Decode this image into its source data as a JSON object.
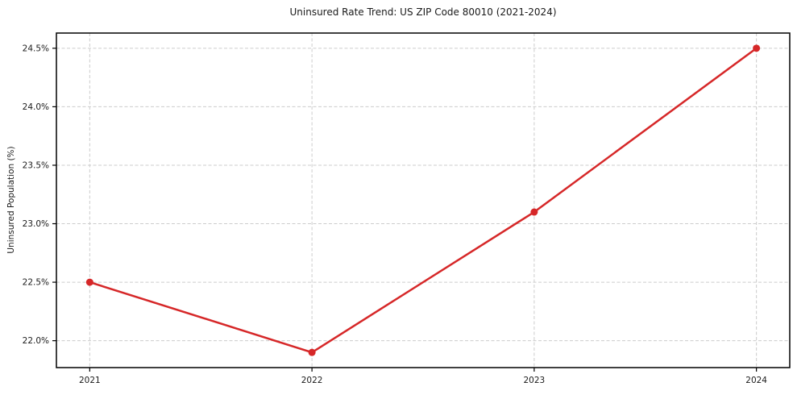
{
  "figure": {
    "background": "#ffffff"
  },
  "chart_data": {
    "type": "line",
    "title": "Uninsured Rate Trend: US ZIP Code 80010 (2021-2024)",
    "xlabel": "",
    "ylabel": "Uninsured Population (%)",
    "x": [
      2021,
      2022,
      2023,
      2024
    ],
    "x_tick_labels": [
      "2021",
      "2022",
      "2023",
      "2024"
    ],
    "y_ticks": [
      22.0,
      22.5,
      23.0,
      23.5,
      24.0,
      24.5
    ],
    "y_tick_labels": [
      "22.0%",
      "22.5%",
      "23.0%",
      "23.5%",
      "24.0%",
      "24.5%"
    ],
    "series": [
      {
        "values": [
          22.5,
          21.9,
          23.1,
          24.5
        ],
        "color": "#d62728",
        "marker": "circle"
      }
    ],
    "xlim": [
      2020.85,
      2024.15
    ],
    "ylim": [
      21.77,
      24.63
    ],
    "grid": true,
    "grid_style": "dashed",
    "grid_color": "#cccccc",
    "spine_color": "#000000",
    "tick_color": "#000000",
    "text_color": "#1a1a1a",
    "legend_position": "none"
  }
}
